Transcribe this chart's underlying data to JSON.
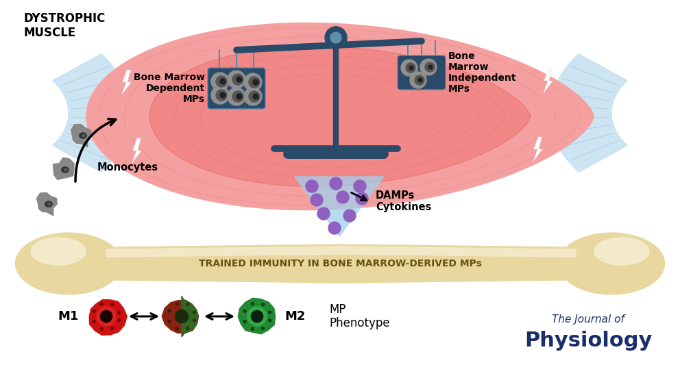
{
  "background_color": "#ffffff",
  "title_small": "The Journal of",
  "title_large": "Physiology",
  "title_color": "#1a2e6b",
  "muscle_outer_color": "#f5a0a0",
  "muscle_inner_color": "#ef7070",
  "tendon_color": "#c5e0f0",
  "tendon_lines_color": "#a0c8e0",
  "bone_color": "#e8d8a0",
  "bone_highlight": "#f5edd0",
  "bone_shadow": "#c8b870",
  "scale_color": "#2a4a6a",
  "basket_color": "#2a4a6a",
  "basket_line_color": "#5a8aaa",
  "damps_cone_color": "#a0d0f0",
  "damps_dot_color": "#9060c0",
  "monocyte_outer": "#888888",
  "monocyte_inner": "#444444",
  "arrow_color": "#111111",
  "lightning_fill": "#ffffff",
  "cell_m1_outer": "#cc1111",
  "cell_m1_inner": "#dd3333",
  "cell_mixed_left": "#993311",
  "cell_mixed_right": "#336622",
  "cell_m2_outer": "#228833",
  "cell_m2_inner": "#44aa55",
  "cell_nucleus": "#1a3a1a",
  "cell_dots": "#1a1a1a",
  "text_dystrophic": "DYSTROPHIC\nMUSCLE",
  "text_bmd": "Bone Marrow\nDependent\nMPs",
  "text_bmi": "Bone\nMarrow\nIndependent\nMPs",
  "text_monocytes": "Monocytes",
  "text_damps": "DAMPs\nCytokines",
  "text_trained": "TRAINED IMMUNITY IN BONE MARROW-DERIVED MPs",
  "text_m1": "M1",
  "text_m2": "M2",
  "text_mp": "MP\nPhenotype",
  "text_journal1": "The Journal of",
  "text_journal2": "Physiology"
}
